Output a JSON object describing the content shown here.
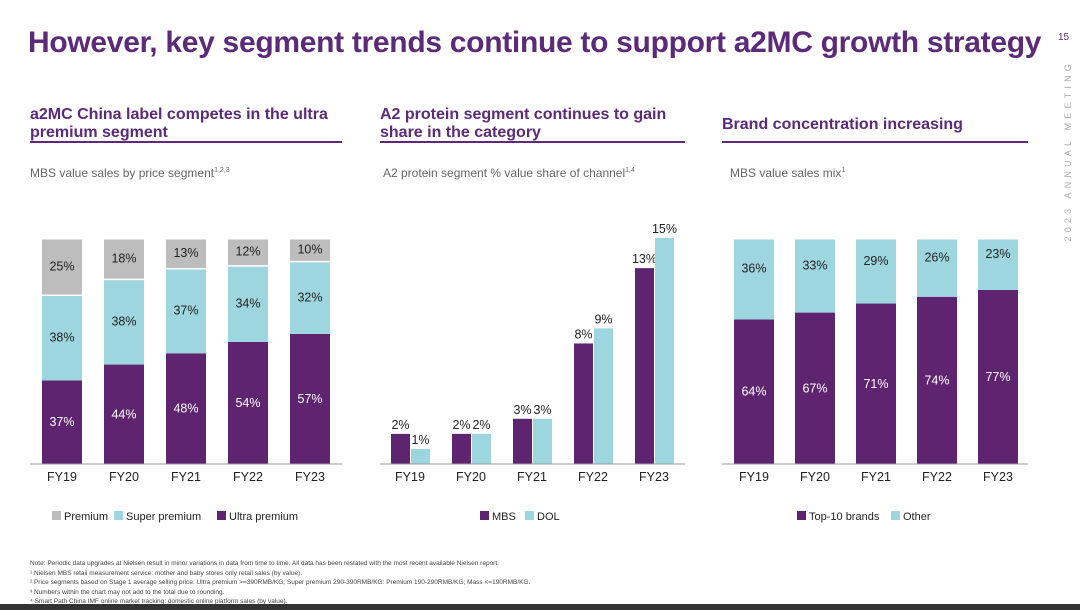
{
  "slide": {
    "title": "However, key segment trends continue to support a2MC growth strategy",
    "page_number": "15",
    "side_label": "2023 ANNUAL MEETING",
    "notes": [
      "Note: Periodic data upgrades at Nielsen result in minor variations in data from time to time. All data has been restated with the most recent available Nielsen report.",
      "¹ Nielsen MBS retail measurement service: mother and baby stores only retail sales (by value).",
      "² Price segments based on Stage 1 average selling price: Ultra premium >=390RMB/KG; Super premium 290-390RMB/KG: Premium 190-290RMB/KG; Mass <=190RMB/KG.",
      "³ Numbers within the chart may not add to the total due to rounding.",
      "⁴ Smart Path China IMF online market tracking: domestic online platform sales (by value)."
    ]
  },
  "panels": [
    {
      "heading": "a2MC China label competes in the ultra premium segment",
      "subtitle": "MBS value sales by price segment",
      "sup": "1,2,3"
    },
    {
      "heading": "A2 protein segment continues to gain share in the category",
      "subtitle": "A2 protein segment % value share of channel",
      "sup": "1,4"
    },
    {
      "heading": "Brand concentration increasing",
      "subtitle": "MBS value sales mix",
      "sup": "1"
    }
  ],
  "colors": {
    "purple": "#5e2470",
    "light_blue": "#9ed6df",
    "grey": "#bdbdbd",
    "title": "#5b2a78"
  },
  "chart_data": [
    {
      "type": "bar",
      "stacked": true,
      "percent_stacked": true,
      "categories": [
        "FY19",
        "FY20",
        "FY21",
        "FY22",
        "FY23"
      ],
      "series": [
        {
          "name": "Ultra premium",
          "values": [
            37,
            44,
            48,
            54,
            57
          ],
          "color": "#5e2470"
        },
        {
          "name": "Super premium",
          "values": [
            38,
            38,
            37,
            34,
            32
          ],
          "color": "#9ed6df"
        },
        {
          "name": "Premium",
          "values": [
            25,
            18,
            13,
            12,
            10
          ],
          "color": "#bdbdbd"
        }
      ],
      "legend_order": [
        "Premium",
        "Super premium",
        "Ultra premium"
      ],
      "legend": "bottom",
      "ylim": [
        0,
        100
      ],
      "grid": false
    },
    {
      "type": "bar",
      "stacked": false,
      "categories": [
        "FY19",
        "FY20",
        "FY21",
        "FY22",
        "FY23"
      ],
      "series": [
        {
          "name": "MBS",
          "values": [
            2,
            2,
            3,
            8,
            13
          ],
          "color": "#5e2470"
        },
        {
          "name": "DOL",
          "values": [
            1,
            2,
            3,
            9,
            15
          ],
          "color": "#9ed6df"
        }
      ],
      "legend_order": [
        "MBS",
        "DOL"
      ],
      "legend": "bottom",
      "ylim": [
        0,
        15
      ],
      "grid": false
    },
    {
      "type": "bar",
      "stacked": true,
      "percent_stacked": true,
      "categories": [
        "FY19",
        "FY20",
        "FY21",
        "FY22",
        "FY23"
      ],
      "series": [
        {
          "name": "Top-10 brands",
          "values": [
            64,
            67,
            71,
            74,
            77
          ],
          "color": "#5e2470"
        },
        {
          "name": "Other",
          "values": [
            36,
            33,
            29,
            26,
            23
          ],
          "color": "#9ed6df"
        }
      ],
      "legend_order": [
        "Top-10 brands",
        "Other"
      ],
      "legend": "bottom",
      "ylim": [
        0,
        100
      ],
      "grid": false
    }
  ]
}
